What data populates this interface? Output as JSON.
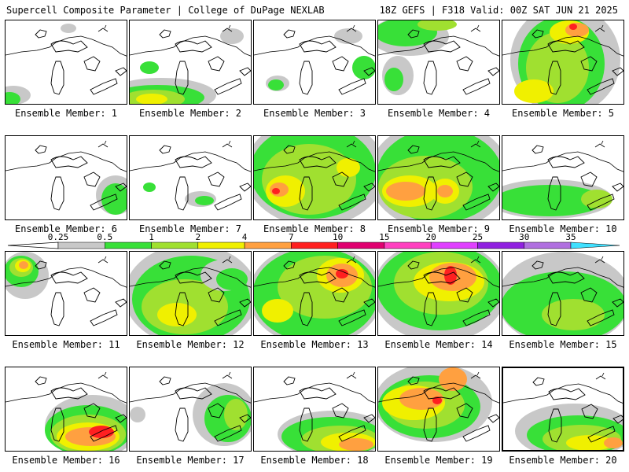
{
  "header": {
    "left": "Supercell Composite Parameter | College of DuPage NEXLAB",
    "right": "18Z GEFS | F318 Valid: 00Z SAT JUN 21 2025"
  },
  "caption_prefix": "Ensemble Member:",
  "colorbar": {
    "labels": [
      "0.25",
      "0.5",
      "1",
      "2",
      "4",
      "7",
      "10",
      "15",
      "20",
      "25",
      "30",
      "35"
    ],
    "colors": [
      "#c8c8c8",
      "#38e038",
      "#a0e030",
      "#f0f000",
      "#ffa040",
      "#ff2020",
      "#e00070",
      "#ff40c0",
      "#e040ff",
      "#9020e0",
      "#b070e0",
      "#40e0ff"
    ]
  },
  "legend_colors": {
    "gray": "#c8c8c8",
    "green": "#38e038",
    "lightgreen": "#a0e030",
    "yellow": "#f0f000",
    "orange": "#ffa040",
    "red": "#ff2020"
  },
  "members": [
    {
      "number": "1"
    },
    {
      "number": "2"
    },
    {
      "number": "3"
    },
    {
      "number": "4"
    },
    {
      "number": "5"
    },
    {
      "number": "6"
    },
    {
      "number": "7"
    },
    {
      "number": "8"
    },
    {
      "number": "9"
    },
    {
      "number": "10"
    },
    {
      "number": "11"
    },
    {
      "number": "12"
    },
    {
      "number": "13"
    },
    {
      "number": "14"
    },
    {
      "number": "15"
    },
    {
      "number": "16"
    },
    {
      "number": "17"
    },
    {
      "number": "18"
    },
    {
      "number": "19"
    },
    {
      "number": "20",
      "selected": true
    }
  ]
}
